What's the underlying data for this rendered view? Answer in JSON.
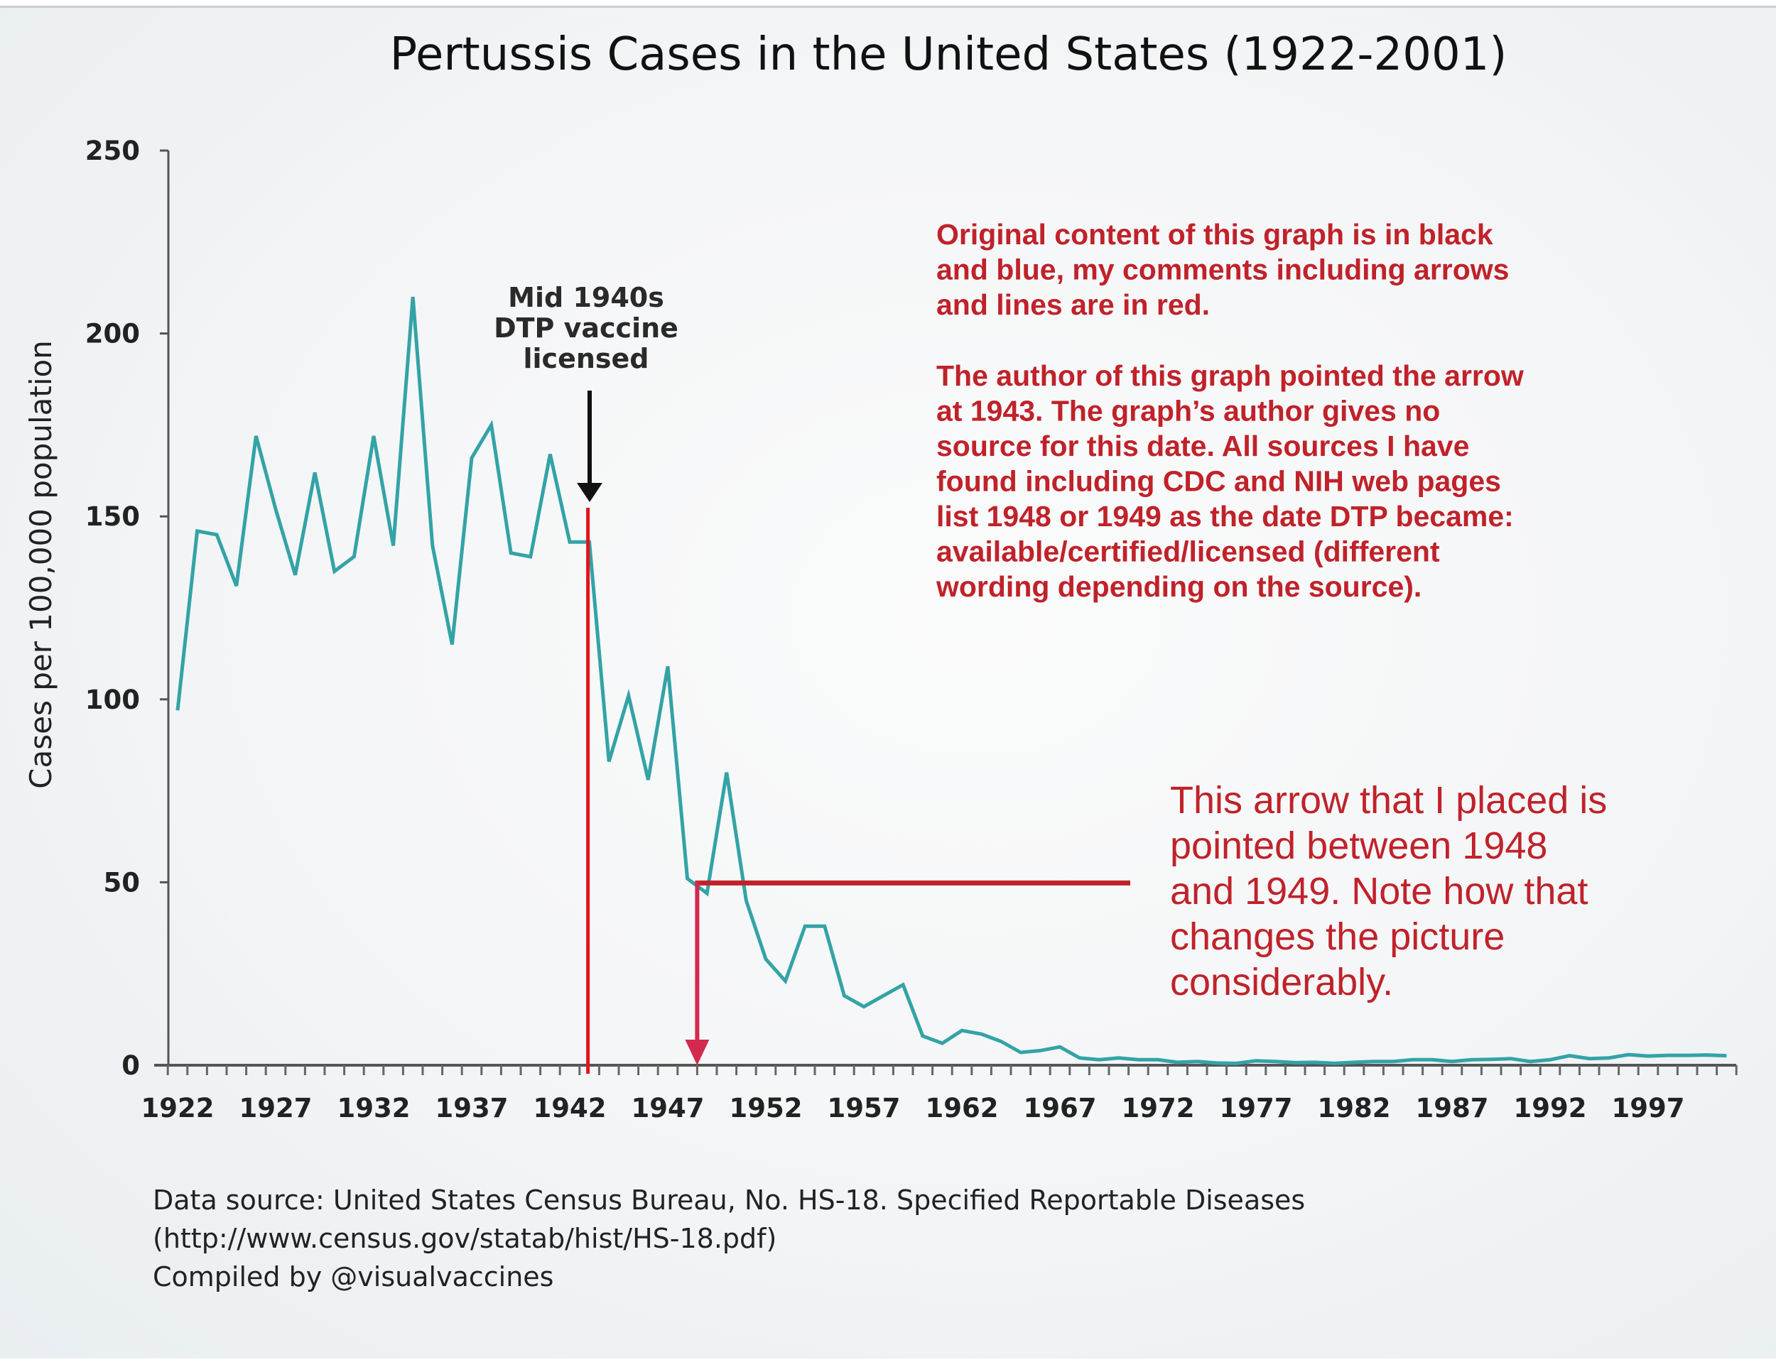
{
  "chart_data": {
    "type": "line",
    "title": "Pertussis Cases in the United States (1922-2001)",
    "xlabel": "",
    "ylabel": "Cases per 100,000 population",
    "ylim": [
      0,
      250
    ],
    "yticks": [
      0,
      50,
      100,
      150,
      200,
      250
    ],
    "xlim": [
      1922,
      2001
    ],
    "xtick_labels": [
      "1922",
      "1927",
      "1932",
      "1937",
      "1942",
      "1947",
      "1952",
      "1957",
      "1962",
      "1967",
      "1972",
      "1977",
      "1982",
      "1987",
      "1992",
      "1997"
    ],
    "grid": false,
    "legend": "none",
    "series": [
      {
        "name": "Pertussis cases per 100,000",
        "color": "#33a3a6",
        "x": [
          1922,
          1923,
          1924,
          1925,
          1926,
          1927,
          1928,
          1929,
          1930,
          1931,
          1932,
          1933,
          1934,
          1935,
          1936,
          1937,
          1938,
          1939,
          1940,
          1941,
          1942,
          1943,
          1944,
          1945,
          1946,
          1947,
          1948,
          1949,
          1950,
          1951,
          1952,
          1953,
          1954,
          1955,
          1956,
          1957,
          1958,
          1959,
          1960,
          1961,
          1962,
          1963,
          1964,
          1965,
          1966,
          1967,
          1968,
          1969,
          1970,
          1971,
          1972,
          1973,
          1974,
          1975,
          1976,
          1977,
          1978,
          1979,
          1980,
          1981,
          1982,
          1983,
          1984,
          1985,
          1986,
          1987,
          1988,
          1989,
          1990,
          1991,
          1992,
          1993,
          1994,
          1995,
          1996,
          1997,
          1998,
          1999,
          2000,
          2001
        ],
        "values": [
          97,
          146,
          145,
          131,
          172,
          152,
          134,
          162,
          135,
          139,
          172,
          142,
          210,
          142,
          115,
          166,
          175,
          140,
          139,
          167,
          143,
          143,
          83,
          101,
          78,
          109,
          51,
          47,
          80,
          45,
          29,
          23,
          38,
          38,
          19,
          16,
          19,
          22,
          8,
          6,
          9.5,
          8.5,
          6.5,
          3.5,
          4,
          5,
          2,
          1.5,
          2,
          1.5,
          1.5,
          0.8,
          1,
          0.6,
          0.5,
          1.2,
          1,
          0.7,
          0.8,
          0.5,
          0.8,
          1,
          1,
          1.5,
          1.5,
          1,
          1.5,
          1.6,
          1.8,
          1,
          1.5,
          2.6,
          1.8,
          2,
          2.9,
          2.5,
          2.7,
          2.7,
          2.8,
          2.6
        ]
      }
    ],
    "annotations": [
      {
        "text_lines": [
          "Mid 1940s",
          "DTP vaccine",
          "licensed"
        ],
        "color": "#111111",
        "points_to_year": 1943,
        "type": "arrow"
      },
      {
        "type": "vertical-line",
        "year": 1943,
        "color": "#e0141e"
      },
      {
        "type": "arrow",
        "year": 1948.5,
        "from_value": 50,
        "color": "#d4294e"
      },
      {
        "type": "horizontal-line",
        "value": 50,
        "color": "#c0222a"
      }
    ]
  },
  "notes": {
    "original_note_lines": [
      "Original content of this graph is in black",
      "and blue, my comments including arrows",
      "and lines are in red."
    ],
    "author_note_lines": [
      "The author of this graph pointed the arrow",
      "at 1943. The graph’s author gives no",
      "source for this date. All sources I have",
      "found including CDC and NIH web pages",
      "list 1948 or 1949 as the date DTP became:",
      "available/certified/licensed (different",
      "wording depending on the source)."
    ],
    "arrow_note_lines": [
      "This arrow that I placed is",
      "pointed between 1948",
      "and 1949. Note how that",
      "changes the picture",
      "considerably."
    ],
    "color": "#c0222a"
  },
  "source": {
    "lines": [
      "Data source: United States Census Bureau, No. HS-18. Specified Reportable Diseases",
      "(http://www.census.gov/statab/hist/HS-18.pdf)",
      "Compiled by @visualvaccines"
    ]
  }
}
